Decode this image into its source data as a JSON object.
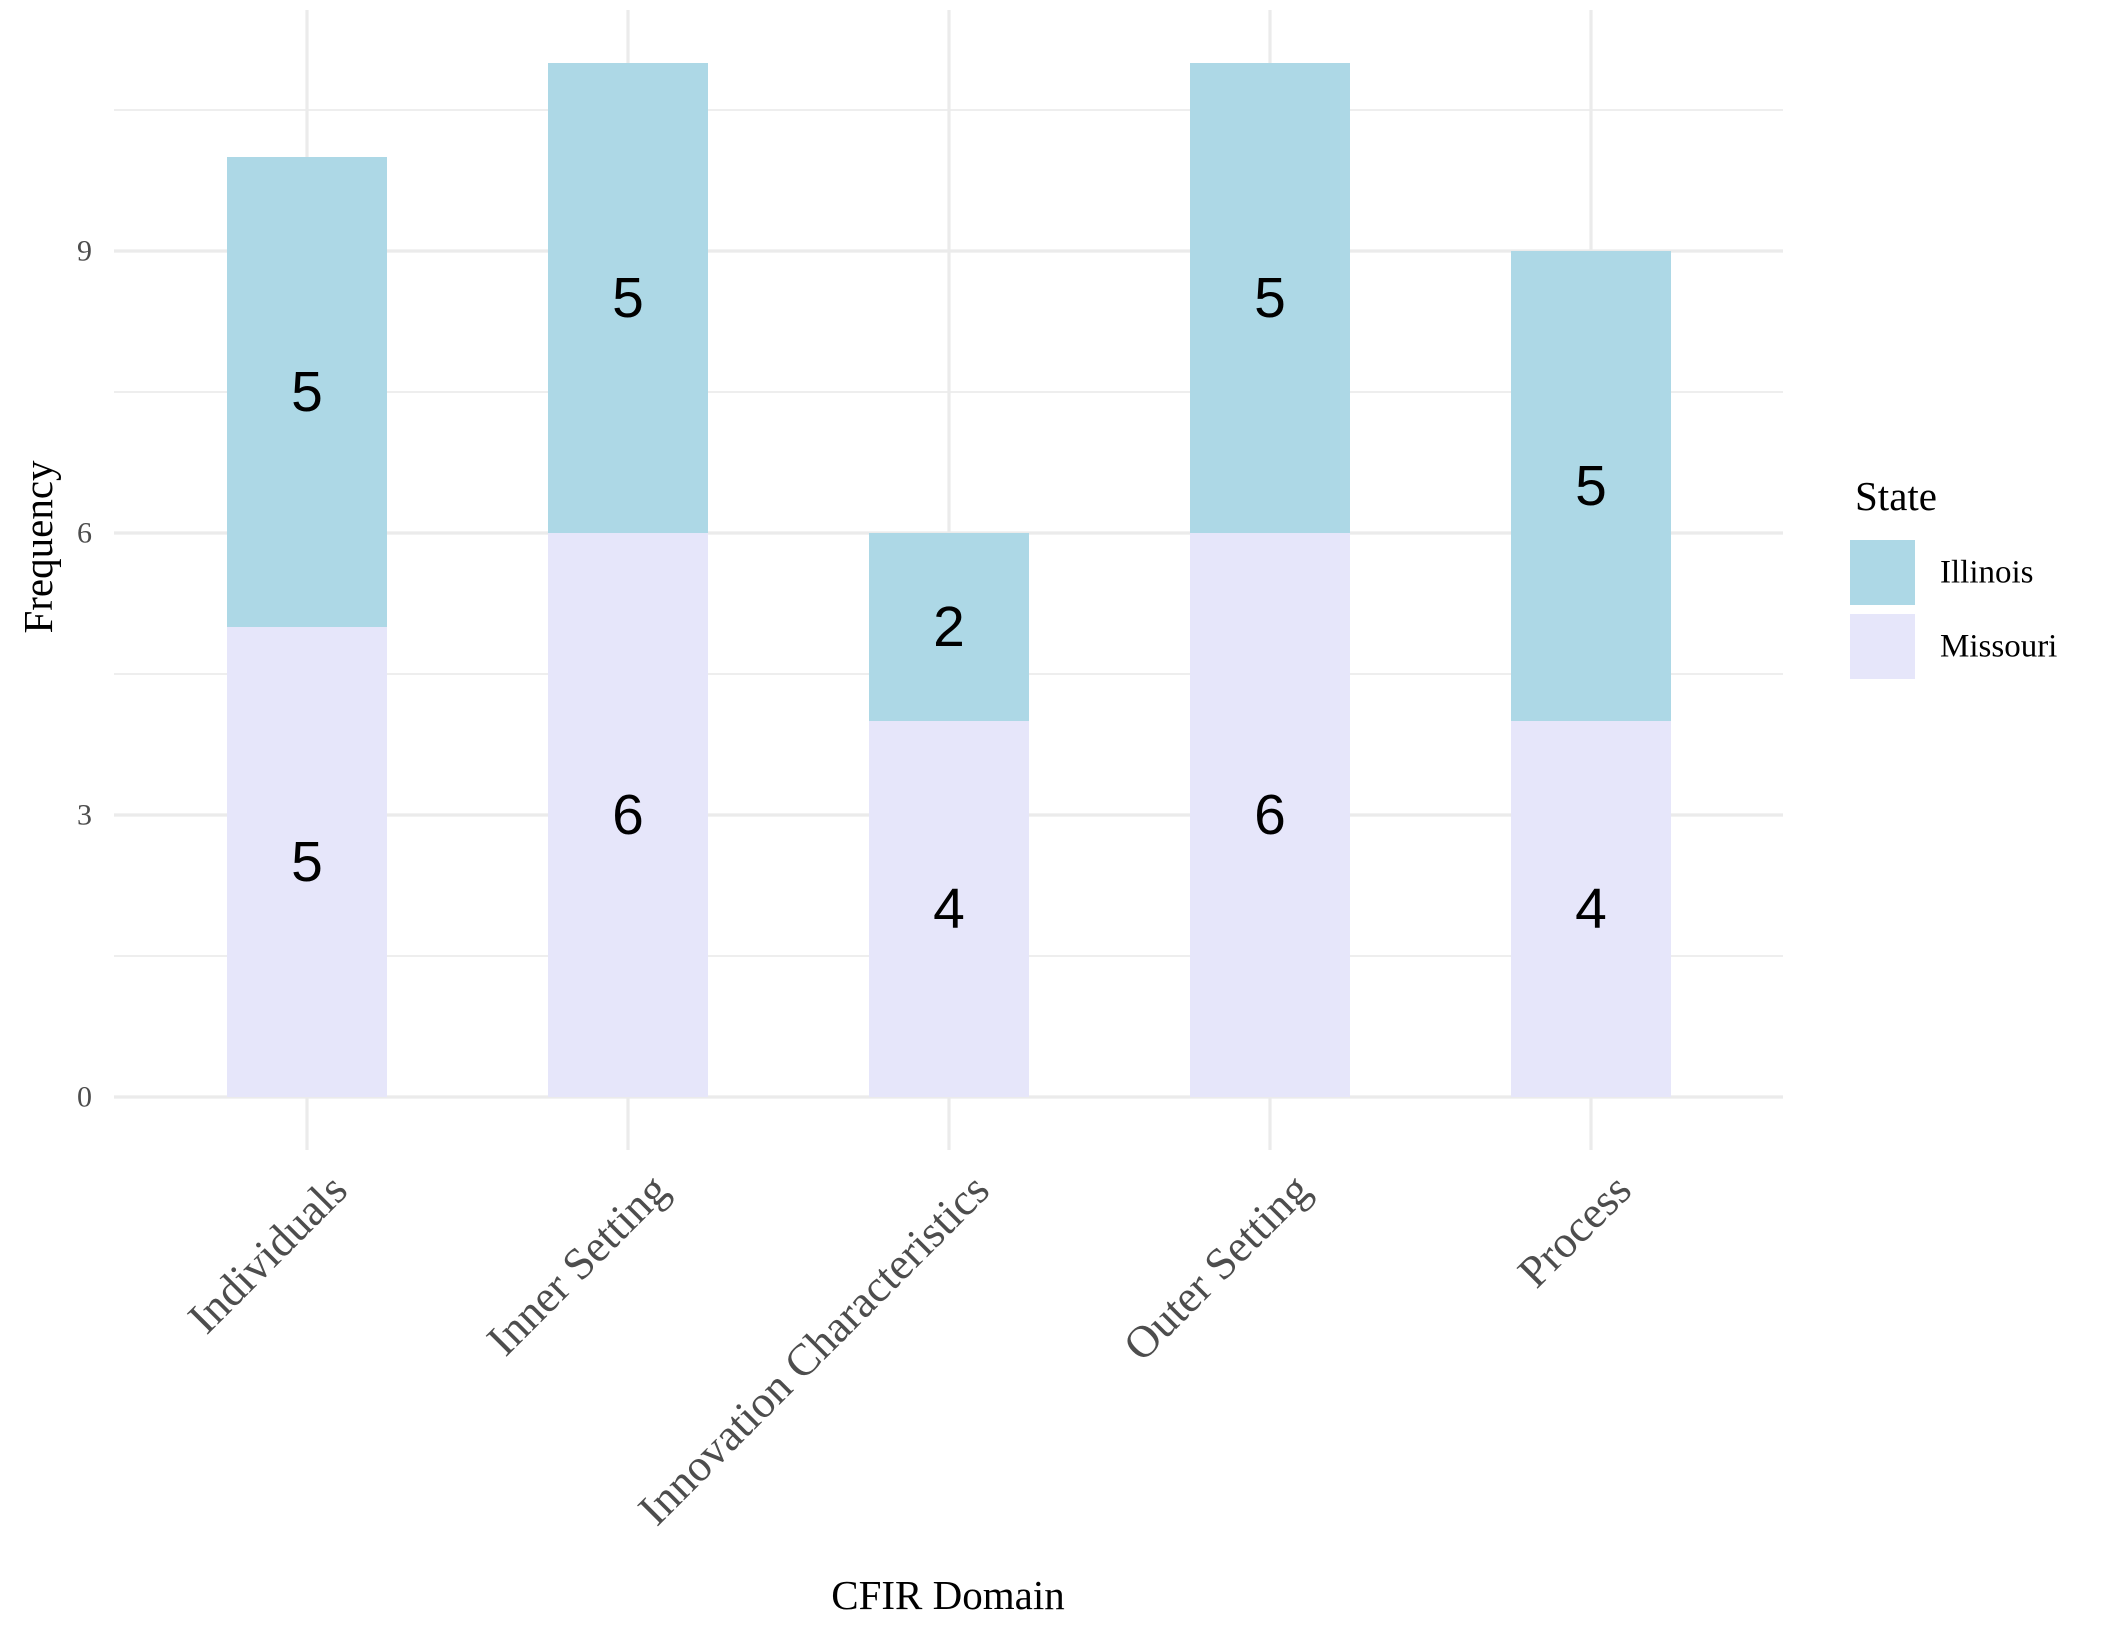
{
  "chart_data": {
    "type": "bar",
    "stacked": true,
    "categories": [
      "Individuals",
      "Inner Setting",
      "Innovation Characteristics",
      "Outer Setting",
      "Process"
    ],
    "series": [
      {
        "name": "Missouri",
        "values": [
          5,
          6,
          4,
          6,
          4
        ],
        "color": "#e6e6fa"
      },
      {
        "name": "Illinois",
        "values": [
          5,
          5,
          2,
          5,
          5
        ],
        "color": "#add8e6"
      }
    ],
    "xlabel": "CFIR Domain",
    "ylabel": "Frequency",
    "ylim": [
      0,
      11
    ],
    "yticks": [
      0,
      3,
      6,
      9
    ],
    "grid": true,
    "legend": {
      "title": "State",
      "position": "right",
      "entries": [
        "Illinois",
        "Missouri"
      ]
    }
  }
}
